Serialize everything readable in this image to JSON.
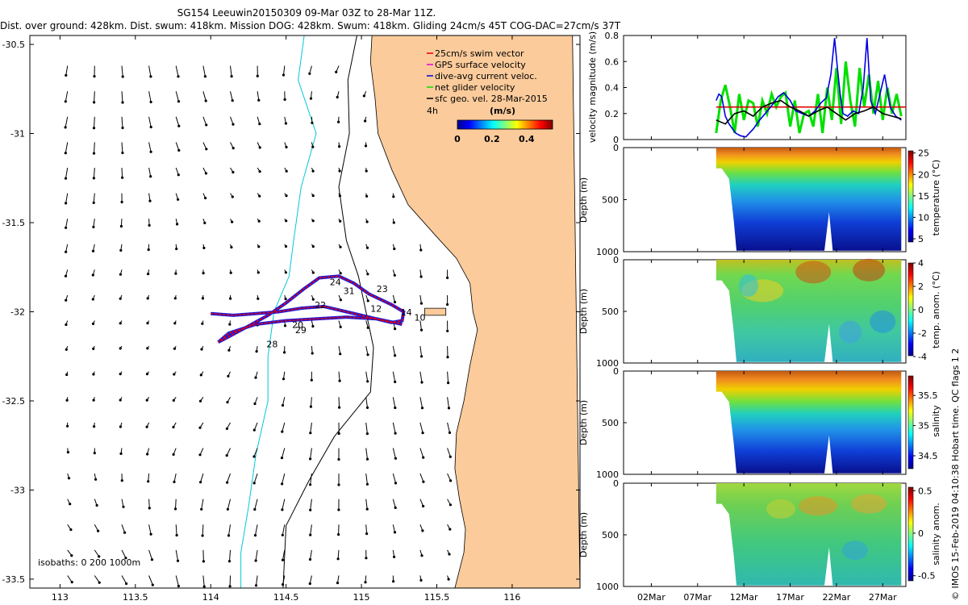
{
  "header": {
    "line1": "SG154 Leeuwin20150309 09-Mar 03Z to 28-Mar 11Z.",
    "line2": "Dist. over ground: 428km. Dist. swum: 418km. Mission DOG: 428km. Swum: 418km. Gliding 24cm/s 45T COG-DAC=27cm/s 37T"
  },
  "credit": "© IMOS 15-Feb-2019 04:10:38 Hobart time. QC flags 1  2",
  "colors": {
    "land": "#FBCB9B",
    "swim_vector": "#e00000",
    "gps_velocity": "#e000e0",
    "dac": "#0000e0",
    "net_velocity": "#00e000",
    "sfc_geo": "#000000",
    "isobath_shallow": "#00c8d8",
    "isobath_deep": "#000000"
  },
  "chart_data": [
    {
      "id": "map",
      "type": "scatter",
      "xlabel": "",
      "ylabel": "",
      "xlim": [
        112.8,
        116.45
      ],
      "ylim": [
        -33.55,
        -30.45
      ],
      "xticks": [
        113,
        113.5,
        114,
        114.5,
        115,
        115.5,
        116
      ],
      "xtick_labels": [
        "113",
        "113.5",
        "114",
        "114.5",
        "115",
        "115.5",
        "116"
      ],
      "yticks": [
        -30.5,
        -31,
        -31.5,
        -32,
        -32.5,
        -33,
        -33.5
      ],
      "ytick_labels": [
        "-30.5",
        "-31",
        "-31.5",
        "-32",
        "-32.5",
        "-33",
        "-33.5"
      ],
      "legend": {
        "placement": "top-right",
        "entries": [
          "25cm/s swim vector",
          "GPS surface velocity",
          "dive-avg current veloc.",
          "net glider velocity",
          "sfc geo. vel. 28-Mar-2015"
        ]
      },
      "time_label": "4h",
      "colorbar": {
        "label": "(m/s)",
        "ticks": [
          0,
          0.2,
          0.4
        ],
        "tick_labels": [
          "0",
          "0.2",
          "0.4"
        ],
        "range": [
          0,
          0.55
        ]
      },
      "isobaths_label": "isobaths: 0   200  1000m",
      "coastline": [
        [
          116.4,
          -30.45
        ],
        [
          115.07,
          -30.45
        ],
        [
          115.06,
          -30.6
        ],
        [
          115.09,
          -30.8
        ],
        [
          115.11,
          -31.0
        ],
        [
          115.2,
          -31.2
        ],
        [
          115.31,
          -31.4
        ],
        [
          115.5,
          -31.58
        ],
        [
          115.63,
          -31.7
        ],
        [
          115.72,
          -31.84
        ],
        [
          115.74,
          -32.0
        ],
        [
          115.77,
          -32.1
        ],
        [
          115.72,
          -32.3
        ],
        [
          115.68,
          -32.5
        ],
        [
          115.63,
          -32.68
        ],
        [
          115.62,
          -32.88
        ],
        [
          115.65,
          -33.05
        ],
        [
          115.69,
          -33.22
        ],
        [
          115.68,
          -33.35
        ],
        [
          115.62,
          -33.55
        ],
        [
          116.45,
          -33.55
        ]
      ],
      "rottnest_island": [
        [
          115.42,
          -31.98
        ],
        [
          115.56,
          -31.98
        ],
        [
          115.56,
          -32.02
        ],
        [
          115.42,
          -32.02
        ]
      ],
      "isobath_200": [
        [
          114.97,
          -30.45
        ],
        [
          114.91,
          -30.7
        ],
        [
          114.92,
          -31.0
        ],
        [
          114.85,
          -31.3
        ],
        [
          114.9,
          -31.6
        ],
        [
          114.98,
          -31.8
        ],
        [
          115.03,
          -32.0
        ],
        [
          115.08,
          -32.2
        ],
        [
          115.06,
          -32.45
        ],
        [
          114.82,
          -32.7
        ],
        [
          114.65,
          -32.95
        ],
        [
          114.5,
          -33.2
        ],
        [
          114.48,
          -33.55
        ]
      ],
      "isobath_1000": [
        [
          114.62,
          -30.45
        ],
        [
          114.58,
          -30.7
        ],
        [
          114.7,
          -31.0
        ],
        [
          114.6,
          -31.3
        ],
        [
          114.55,
          -31.6
        ],
        [
          114.52,
          -31.8
        ],
        [
          114.42,
          -32.0
        ],
        [
          114.38,
          -32.25
        ],
        [
          114.38,
          -32.5
        ],
        [
          114.3,
          -32.8
        ],
        [
          114.25,
          -33.1
        ],
        [
          114.2,
          -33.35
        ],
        [
          114.2,
          -33.55
        ]
      ],
      "track": [
        [
          114.0,
          -32.01
        ],
        [
          114.15,
          -32.02
        ],
        [
          114.3,
          -32.01
        ],
        [
          114.45,
          -32.0
        ],
        [
          114.6,
          -31.98
        ],
        [
          114.75,
          -31.97
        ],
        [
          114.9,
          -32.0
        ],
        [
          115.05,
          -32.03
        ],
        [
          115.2,
          -32.06
        ],
        [
          115.27,
          -32.05
        ],
        [
          115.28,
          -32.0
        ],
        [
          115.2,
          -31.96
        ],
        [
          115.05,
          -31.9
        ],
        [
          114.95,
          -31.84
        ],
        [
          114.85,
          -31.8
        ],
        [
          114.72,
          -31.81
        ],
        [
          114.62,
          -31.87
        ],
        [
          114.5,
          -31.95
        ],
        [
          114.38,
          -32.02
        ],
        [
          114.25,
          -32.08
        ],
        [
          114.12,
          -32.14
        ],
        [
          114.05,
          -32.17
        ],
        [
          114.12,
          -32.12
        ],
        [
          114.3,
          -32.07
        ],
        [
          114.5,
          -32.05
        ],
        [
          114.7,
          -32.04
        ],
        [
          114.9,
          -32.03
        ],
        [
          115.1,
          -32.04
        ],
        [
          115.27,
          -32.07
        ]
      ],
      "track_labels": [
        {
          "text": "24",
          "lon": 114.79,
          "lat": -31.85
        },
        {
          "text": "23",
          "lon": 115.1,
          "lat": -31.89
        },
        {
          "text": "31",
          "lon": 114.88,
          "lat": -31.9
        },
        {
          "text": "22",
          "lon": 114.69,
          "lat": -31.98
        },
        {
          "text": "12",
          "lon": 115.06,
          "lat": -32.0
        },
        {
          "text": "10",
          "lon": 115.35,
          "lat": -32.05
        },
        {
          "text": "14",
          "lon": 115.26,
          "lat": -32.02
        },
        {
          "text": "20",
          "lon": 114.54,
          "lat": -32.09
        },
        {
          "text": "29",
          "lon": 114.56,
          "lat": -32.12
        },
        {
          "text": "28",
          "lon": 114.37,
          "lat": -32.2
        }
      ]
    },
    {
      "id": "velocity",
      "type": "line",
      "title": "",
      "xlabel": "",
      "ylabel": "velocity magnitude (m/s)",
      "ylim": [
        0,
        0.8
      ],
      "yticks": [
        0,
        0.2,
        0.4,
        0.6,
        0.8
      ],
      "ytick_labels": [
        "0",
        "0.2",
        "0.4",
        "0.6",
        "0.8"
      ],
      "x_unit": "days since 27-Feb",
      "xlim": [
        0,
        30.5
      ],
      "series": [
        {
          "name": "25cm/s swim vector",
          "x": [
            10,
            30.5
          ],
          "y": [
            0.25,
            0.25
          ]
        },
        {
          "name": "dive-avg current veloc.",
          "x": [
            10,
            10.3,
            10.6,
            11,
            11.4,
            11.8,
            12.1,
            12.6,
            13.2,
            14,
            14.7,
            15.3,
            16,
            16.7,
            17.3,
            18,
            18.6,
            19.3,
            20,
            20.7,
            21.3,
            21.9,
            22.4,
            22.8,
            23.1,
            23.4,
            23.7,
            24.2,
            24.8,
            25.4,
            25.9,
            26.3,
            26.7,
            27.2,
            27.7,
            28.2,
            28.8,
            29.4,
            30
          ],
          "y": [
            0.3,
            0.35,
            0.33,
            0.18,
            0.12,
            0.08,
            0.05,
            0.03,
            0.02,
            0.08,
            0.15,
            0.2,
            0.26,
            0.33,
            0.36,
            0.3,
            0.22,
            0.2,
            0.18,
            0.22,
            0.28,
            0.32,
            0.5,
            0.78,
            0.55,
            0.35,
            0.2,
            0.18,
            0.22,
            0.2,
            0.4,
            0.78,
            0.3,
            0.2,
            0.35,
            0.5,
            0.25,
            0.18,
            0.15
          ]
        },
        {
          "name": "net glider velocity",
          "x": [
            10,
            10.5,
            11,
            11.5,
            12,
            12.5,
            13,
            13.5,
            14,
            14.5,
            15,
            15.5,
            16,
            16.5,
            17,
            17.5,
            18,
            18.5,
            19,
            19.5,
            20,
            20.5,
            21,
            21.5,
            22,
            22.5,
            23,
            23.5,
            24,
            24.5,
            25,
            25.5,
            26,
            26.5,
            27,
            27.5,
            28,
            28.5,
            29,
            29.5,
            30
          ],
          "y": [
            0.05,
            0.3,
            0.42,
            0.25,
            0.05,
            0.35,
            0.15,
            0.3,
            0.28,
            0.1,
            0.3,
            0.2,
            0.35,
            0.25,
            0.33,
            0.36,
            0.1,
            0.3,
            0.05,
            0.2,
            0.22,
            0.1,
            0.35,
            0.05,
            0.4,
            0.15,
            0.55,
            0.12,
            0.6,
            0.3,
            0.1,
            0.55,
            0.25,
            0.5,
            0.2,
            0.45,
            0.15,
            0.4,
            0.2,
            0.35,
            0.18
          ]
        },
        {
          "name": "sfc geo. vel.",
          "x": [
            10,
            11,
            12,
            13,
            14,
            15,
            16,
            17,
            18,
            19,
            20,
            21,
            22,
            23,
            24,
            25,
            26,
            27,
            28,
            29,
            30
          ],
          "y": [
            0.15,
            0.12,
            0.2,
            0.22,
            0.18,
            0.25,
            0.28,
            0.3,
            0.25,
            0.22,
            0.18,
            0.22,
            0.25,
            0.2,
            0.15,
            0.2,
            0.22,
            0.25,
            0.2,
            0.18,
            0.16
          ]
        }
      ]
    },
    {
      "id": "temperature",
      "type": "heatmap",
      "ylabel": "Depth (m)",
      "ylim": [
        0,
        1000
      ],
      "yticks": [
        0,
        500,
        1000
      ],
      "ytick_labels": [
        "0",
        "500",
        "1000"
      ],
      "colorbar_label": "temperature (°C)",
      "colorbar_ticks": [
        5,
        10,
        15,
        20,
        25
      ],
      "colorbar_range": [
        3.5,
        25.5
      ]
    },
    {
      "id": "temp-anomaly",
      "type": "heatmap",
      "ylabel": "Depth (m)",
      "ylim": [
        0,
        1000
      ],
      "yticks": [
        0,
        500,
        1000
      ],
      "ytick_labels": [
        "0",
        "500",
        "1000"
      ],
      "colorbar_label": "temp. anom. (°C)",
      "colorbar_ticks": [
        -4,
        -2,
        0,
        2,
        4
      ],
      "colorbar_range": [
        -4,
        4
      ]
    },
    {
      "id": "salinity",
      "type": "heatmap",
      "ylabel": "Depth (m)",
      "ylim": [
        0,
        1000
      ],
      "yticks": [
        0,
        500,
        1000
      ],
      "ytick_labels": [
        "0",
        "500",
        "1000"
      ],
      "colorbar_label": "salinity",
      "colorbar_ticks": [
        34.5,
        35,
        35.5
      ],
      "colorbar_range": [
        34.3,
        35.85
      ]
    },
    {
      "id": "salinity-anomaly",
      "type": "heatmap",
      "ylabel": "Depth (m)",
      "ylim": [
        0,
        1000
      ],
      "yticks": [
        0,
        500,
        1000
      ],
      "ytick_labels": [
        "0",
        "500",
        "1000"
      ],
      "colorbar_label": "salinity anom.",
      "colorbar_ticks": [
        -0.5,
        0,
        0.5
      ],
      "colorbar_range": [
        -0.55,
        0.55
      ]
    }
  ],
  "time_axis": {
    "unit": "days since 27-Feb",
    "xlim": [
      0,
      30.5
    ],
    "data_start": 10,
    "data_end": 30,
    "ticks": [
      3,
      8,
      13,
      18,
      23,
      28
    ],
    "tick_labels": [
      "02Mar",
      "07Mar",
      "12Mar",
      "17Mar",
      "22Mar",
      "27Mar"
    ]
  }
}
